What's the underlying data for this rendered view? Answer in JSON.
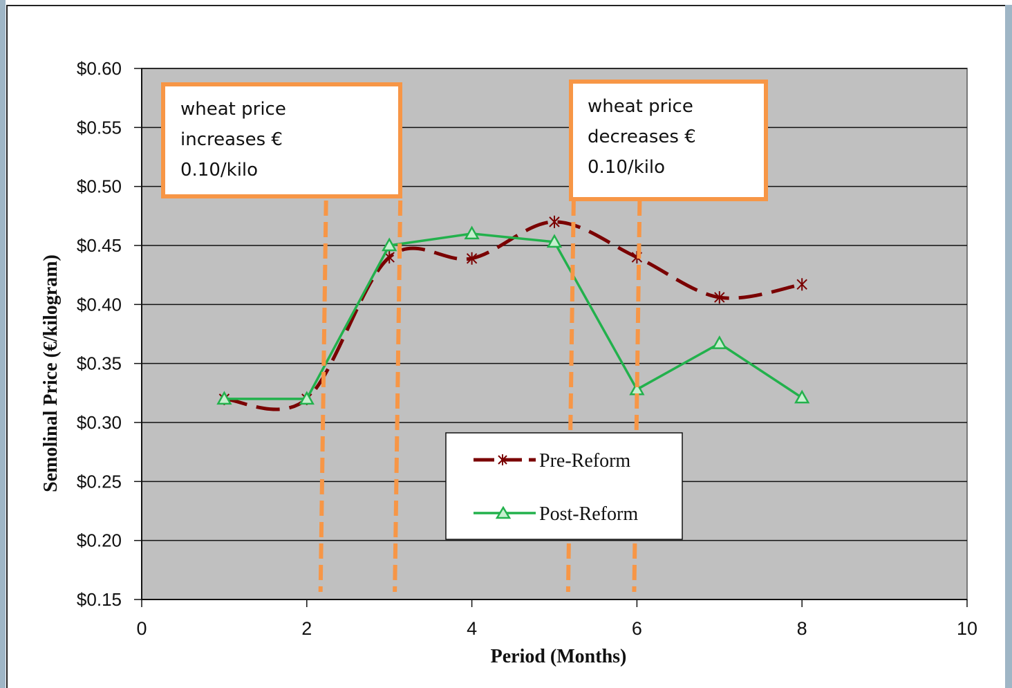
{
  "chart_data": {
    "type": "line",
    "title": "",
    "xlabel": "Period (Months)",
    "ylabel": "Semolinal Price (€/kilogram)",
    "xlim": [
      0,
      10
    ],
    "ylim": [
      0.15,
      0.6
    ],
    "x_ticks": [
      0,
      2,
      4,
      6,
      8,
      10
    ],
    "x_tick_labels": [
      "0",
      "2",
      "4",
      "6",
      "8",
      "10"
    ],
    "y_ticks": [
      0.15,
      0.2,
      0.25,
      0.3,
      0.35,
      0.4,
      0.45,
      0.5,
      0.55,
      0.6
    ],
    "y_tick_labels": [
      "$0.15",
      "$0.20",
      "$0.25",
      "$0.30",
      "$0.35",
      "$0.40",
      "$0.45",
      "$0.50",
      "$0.55",
      "$0.60"
    ],
    "grid": "horizontal",
    "plot_background": "#c0c0c0",
    "legend_position": "bottom-center",
    "series": [
      {
        "name": "Pre-Reform",
        "color": "#7a0000",
        "marker": "asterisk",
        "line_style": "dashed",
        "x": [
          1,
          2,
          3,
          4,
          5,
          6,
          7,
          8
        ],
        "values": [
          0.32,
          0.32,
          0.44,
          0.439,
          0.47,
          0.44,
          0.406,
          0.417
        ]
      },
      {
        "name": "Post-Reform",
        "color": "#22b14c",
        "marker": "triangle",
        "line_style": "solid",
        "x": [
          1,
          2,
          3,
          4,
          5,
          6,
          7,
          8
        ],
        "values": [
          0.32,
          0.32,
          0.45,
          0.46,
          0.453,
          0.328,
          0.367,
          0.321
        ]
      }
    ],
    "annotations": [
      {
        "lines": [
          "wheat price",
          "increases  €",
          "0.10/kilo"
        ],
        "border_color": "#f79646",
        "guide_lines_x": [
          2.2,
          3.1
        ]
      },
      {
        "lines": [
          "wheat price",
          "decreases  €",
          "0.10/kilo"
        ],
        "border_color": "#f79646",
        "guide_lines_x": [
          5.2,
          6.0
        ]
      }
    ],
    "guide_line_color": "#f79646"
  }
}
